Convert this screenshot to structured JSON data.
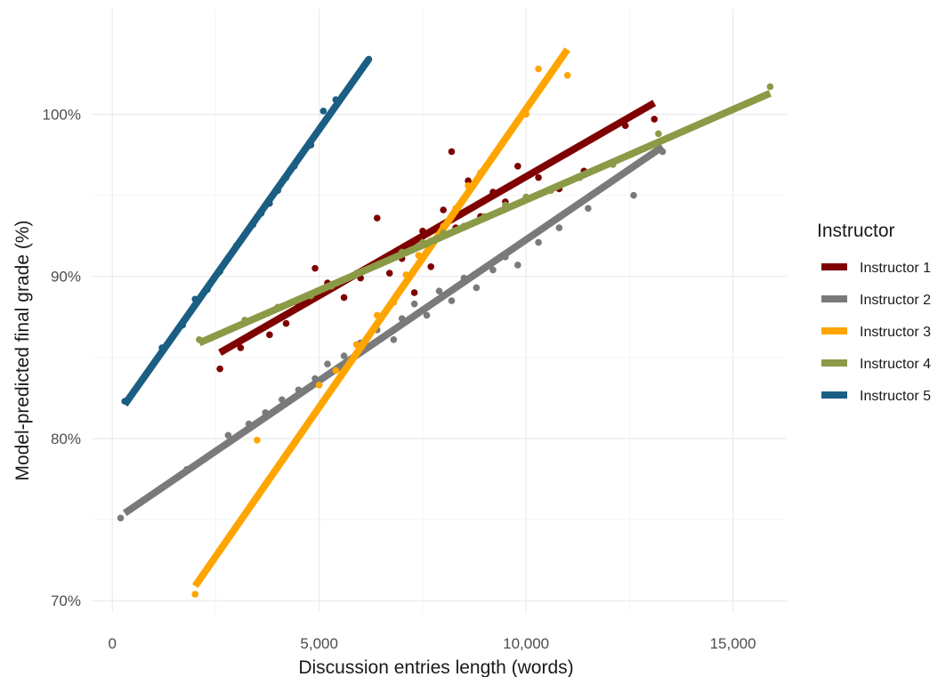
{
  "chart_data": {
    "type": "scatter",
    "title": "",
    "xlabel": "Discussion entries length (words)",
    "ylabel": "Model-predicted final grade (%)",
    "xlim": [
      -500,
      16300
    ],
    "ylim": [
      69.3,
      106.5
    ],
    "x_ticks": [
      0,
      5000,
      10000,
      15000
    ],
    "x_tick_labels": [
      "0",
      "5,000",
      "10,000",
      "15,000"
    ],
    "y_ticks": [
      70,
      80,
      90,
      100
    ],
    "y_tick_labels": [
      "70%",
      "80%",
      "90%",
      "100%"
    ],
    "grid": true,
    "legend": {
      "title": "Instructor",
      "position": "right"
    },
    "series": [
      {
        "name": "Instructor 1",
        "color": "#7f0000",
        "fit": [
          [
            2600,
            85.3
          ],
          [
            13100,
            100.7
          ]
        ],
        "points": [
          [
            2600,
            84.3
          ],
          [
            3100,
            85.6
          ],
          [
            3800,
            86.4
          ],
          [
            4200,
            87.1
          ],
          [
            4500,
            88.2
          ],
          [
            4900,
            90.5
          ],
          [
            5200,
            89.6
          ],
          [
            5600,
            88.7
          ],
          [
            6000,
            89.9
          ],
          [
            6400,
            93.6
          ],
          [
            6700,
            90.2
          ],
          [
            7000,
            91.1
          ],
          [
            7300,
            89.0
          ],
          [
            7500,
            92.8
          ],
          [
            7700,
            90.6
          ],
          [
            8000,
            94.1
          ],
          [
            8200,
            97.7
          ],
          [
            8300,
            93.0
          ],
          [
            8600,
            95.9
          ],
          [
            8900,
            93.7
          ],
          [
            9200,
            95.2
          ],
          [
            9500,
            94.6
          ],
          [
            9800,
            96.8
          ],
          [
            10300,
            96.1
          ],
          [
            10800,
            95.4
          ],
          [
            11400,
            96.5
          ],
          [
            12400,
            99.3
          ],
          [
            13100,
            99.7
          ]
        ]
      },
      {
        "name": "Instructor 2",
        "color": "#7a7a7a",
        "fit": [
          [
            300,
            75.4
          ],
          [
            13300,
            98.0
          ]
        ],
        "points": [
          [
            200,
            75.1
          ],
          [
            1800,
            78.1
          ],
          [
            2800,
            80.2
          ],
          [
            3300,
            80.9
          ],
          [
            3700,
            81.6
          ],
          [
            4100,
            82.4
          ],
          [
            4500,
            83.0
          ],
          [
            4900,
            83.7
          ],
          [
            5200,
            84.6
          ],
          [
            5600,
            85.1
          ],
          [
            6000,
            85.9
          ],
          [
            6400,
            86.7
          ],
          [
            6800,
            86.1
          ],
          [
            7000,
            87.4
          ],
          [
            7300,
            88.3
          ],
          [
            7600,
            87.6
          ],
          [
            7900,
            89.1
          ],
          [
            8200,
            88.5
          ],
          [
            8500,
            89.9
          ],
          [
            8800,
            89.3
          ],
          [
            9200,
            90.4
          ],
          [
            9500,
            91.2
          ],
          [
            9800,
            90.7
          ],
          [
            10300,
            92.1
          ],
          [
            10800,
            93.0
          ],
          [
            11500,
            94.2
          ],
          [
            12600,
            95.0
          ],
          [
            13300,
            97.7
          ]
        ]
      },
      {
        "name": "Instructor 3",
        "color": "#ffa500",
        "fit": [
          [
            2000,
            70.9
          ],
          [
            11000,
            104.0
          ]
        ],
        "points": [
          [
            2000,
            70.4
          ],
          [
            3500,
            79.9
          ],
          [
            5000,
            83.3
          ],
          [
            5400,
            84.2
          ],
          [
            5900,
            85.8
          ],
          [
            6400,
            87.6
          ],
          [
            6800,
            88.4
          ],
          [
            7100,
            90.1
          ],
          [
            7400,
            91.3
          ],
          [
            7700,
            92.2
          ],
          [
            8000,
            93.1
          ],
          [
            8300,
            94.2
          ],
          [
            8600,
            95.6
          ],
          [
            8900,
            96.4
          ],
          [
            10000,
            100.0
          ],
          [
            10300,
            102.8
          ],
          [
            11000,
            102.4
          ]
        ]
      },
      {
        "name": "Instructor 4",
        "color": "#8b9a46",
        "fit": [
          [
            2100,
            85.9
          ],
          [
            15900,
            101.3
          ]
        ],
        "points": [
          [
            2100,
            86.1
          ],
          [
            3200,
            87.3
          ],
          [
            4000,
            88.1
          ],
          [
            4800,
            88.8
          ],
          [
            5300,
            89.4
          ],
          [
            5900,
            90.2
          ],
          [
            6500,
            90.8
          ],
          [
            7000,
            91.5
          ],
          [
            7500,
            92.1
          ],
          [
            8000,
            92.7
          ],
          [
            8500,
            93.1
          ],
          [
            9000,
            93.7
          ],
          [
            9500,
            94.4
          ],
          [
            10000,
            94.9
          ],
          [
            10600,
            95.3
          ],
          [
            11300,
            96.1
          ],
          [
            12100,
            96.9
          ],
          [
            13200,
            98.8
          ],
          [
            15900,
            101.7
          ]
        ]
      },
      {
        "name": "Instructor 5",
        "color": "#1b5e83",
        "fit": [
          [
            300,
            82.1
          ],
          [
            6200,
            103.4
          ]
        ],
        "points": [
          [
            300,
            82.3
          ],
          [
            1200,
            85.6
          ],
          [
            1700,
            87.0
          ],
          [
            2000,
            88.6
          ],
          [
            2300,
            89.2
          ],
          [
            2600,
            90.3
          ],
          [
            2800,
            91.1
          ],
          [
            3000,
            91.9
          ],
          [
            3200,
            92.6
          ],
          [
            3400,
            93.2
          ],
          [
            3600,
            93.9
          ],
          [
            3800,
            94.5
          ],
          [
            4000,
            95.3
          ],
          [
            4200,
            96.1
          ],
          [
            4400,
            96.8
          ],
          [
            4800,
            98.1
          ],
          [
            5100,
            100.2
          ],
          [
            5400,
            100.9
          ],
          [
            6200,
            103.4
          ]
        ]
      }
    ]
  }
}
